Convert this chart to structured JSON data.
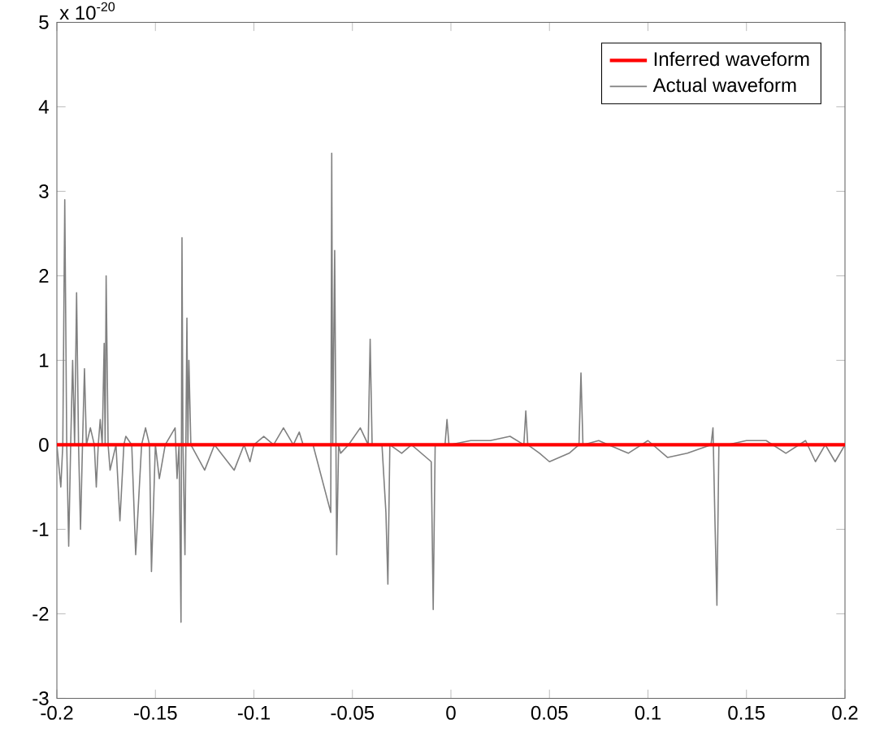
{
  "chart_data": {
    "type": "line",
    "xlim": [
      -0.2,
      0.2
    ],
    "ylim": [
      -3,
      5
    ],
    "xticks": [
      -0.2,
      -0.15,
      -0.1,
      -0.05,
      0,
      0.05,
      0.1,
      0.15,
      0.2
    ],
    "yticks": [
      -3,
      -2,
      -1,
      0,
      1,
      2,
      3,
      4,
      5
    ],
    "legend": "top right",
    "grid": false,
    "marker": "none",
    "line_style": "solid",
    "annotations": [
      "x 10$^{-20}$"
    ],
    "series": [
      {
        "name": "Inferred waveform",
        "color": "#ff0000",
        "x": [
          -0.2,
          0.2
        ],
        "values": [
          0,
          0
        ]
      },
      {
        "name": "Actual waveform",
        "color": "#808080",
        "x": [
          -0.2,
          -0.198,
          -0.197,
          -0.196,
          -0.195,
          -0.194,
          -0.193,
          -0.192,
          -0.191,
          -0.19,
          -0.189,
          -0.188,
          -0.187,
          -0.186,
          -0.185,
          -0.183,
          -0.181,
          -0.18,
          -0.179,
          -0.178,
          -0.177,
          -0.176,
          -0.1755,
          -0.175,
          -0.174,
          -0.173,
          -0.17,
          -0.168,
          -0.166,
          -0.165,
          -0.162,
          -0.16,
          -0.157,
          -0.155,
          -0.153,
          -0.152,
          -0.15,
          -0.148,
          -0.145,
          -0.14,
          -0.139,
          -0.138,
          -0.137,
          -0.1365,
          -0.136,
          -0.135,
          -0.134,
          -0.1335,
          -0.133,
          -0.132,
          -0.125,
          -0.12,
          -0.11,
          -0.105,
          -0.102,
          -0.1,
          -0.095,
          -0.09,
          -0.085,
          -0.08,
          -0.077,
          -0.075,
          -0.07,
          -0.061,
          -0.0605,
          -0.06,
          -0.059,
          -0.058,
          -0.057,
          -0.056,
          -0.052,
          -0.046,
          -0.042,
          -0.041,
          -0.04,
          -0.035,
          -0.033,
          -0.032,
          -0.031,
          -0.025,
          -0.02,
          -0.01,
          -0.009,
          -0.008,
          -0.003,
          -0.002,
          -0.001,
          0.01,
          0.02,
          0.03,
          0.037,
          0.038,
          0.039,
          0.045,
          0.05,
          0.06,
          0.065,
          0.066,
          0.067,
          0.075,
          0.08,
          0.09,
          0.1,
          0.11,
          0.12,
          0.132,
          0.133,
          0.134,
          0.135,
          0.136,
          0.14,
          0.15,
          0.16,
          0.17,
          0.18,
          0.185,
          0.19,
          0.195,
          0.2
        ],
        "values": [
          0,
          -0.5,
          0,
          2.9,
          0,
          -1.2,
          0,
          1.0,
          0,
          1.8,
          0,
          -1.0,
          0,
          0.9,
          0,
          0.2,
          0,
          -0.5,
          0,
          0.3,
          0,
          1.2,
          0,
          2.0,
          0,
          -0.3,
          0,
          -0.9,
          0,
          0.1,
          0,
          -1.3,
          0,
          0.2,
          0,
          -1.5,
          0,
          -0.4,
          0,
          0.2,
          -0.4,
          0,
          -2.1,
          2.45,
          0,
          -1.3,
          1.5,
          0,
          1.0,
          0,
          -0.3,
          0,
          -0.3,
          0,
          -0.2,
          0,
          0.1,
          0,
          0.2,
          0,
          0.15,
          0,
          0,
          -0.8,
          3.45,
          0,
          2.3,
          -1.3,
          0,
          -0.1,
          0,
          0.2,
          0,
          1.25,
          0,
          0,
          -0.8,
          -1.65,
          0,
          -0.1,
          0,
          -0.2,
          -1.95,
          0,
          0,
          0.3,
          0,
          0.05,
          0.05,
          0.1,
          0,
          0.4,
          0,
          -0.1,
          -0.2,
          -0.1,
          0,
          0.85,
          0,
          0.05,
          0,
          -0.1,
          0.05,
          -0.15,
          -0.1,
          0,
          0.2,
          -0.9,
          -1.9,
          0,
          0,
          0.05,
          0.05,
          -0.1,
          0.05,
          -0.2,
          0,
          -0.2,
          0
        ]
      }
    ]
  }
}
